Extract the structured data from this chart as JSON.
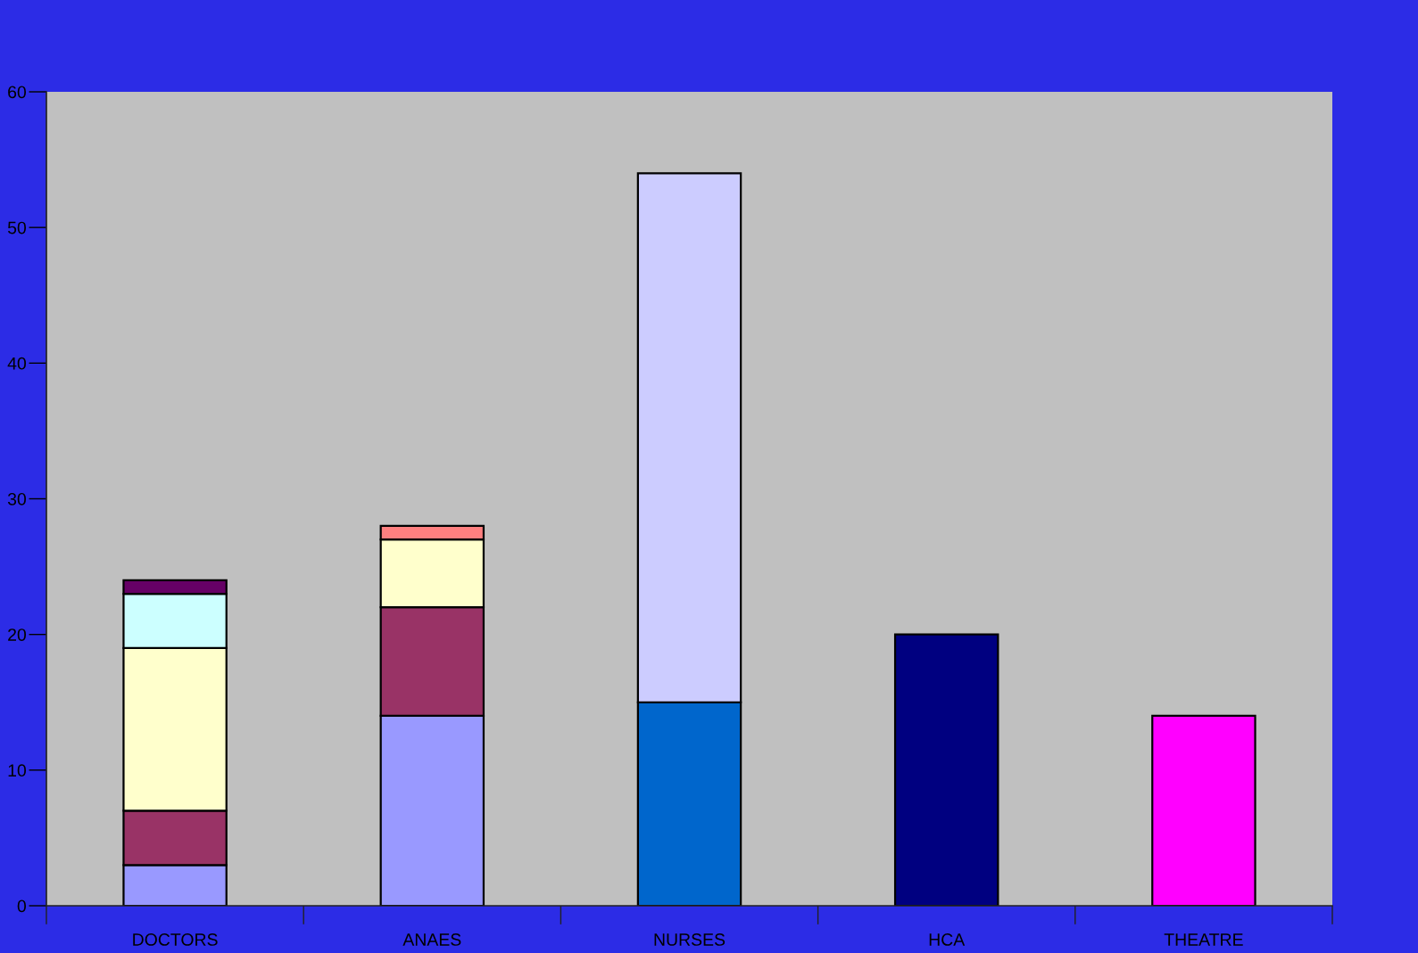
{
  "chart_data": {
    "type": "bar",
    "categories": [
      "DOCTORS",
      "ANAES",
      "NURSES",
      "HCA",
      "THEATRE"
    ],
    "stacked": true,
    "series": [
      {
        "color": "#9999ff",
        "values": [
          3,
          14,
          null,
          null,
          null
        ]
      },
      {
        "color": "#993366",
        "values": [
          4,
          8,
          null,
          null,
          null
        ]
      },
      {
        "color": "#ffffcc",
        "values": [
          12,
          5,
          null,
          null,
          null
        ]
      },
      {
        "color": "#ccffff",
        "values": [
          4,
          null,
          null,
          null,
          null
        ]
      },
      {
        "color": "#660066",
        "values": [
          1,
          null,
          null,
          null,
          null
        ]
      },
      {
        "color": "#ff8080",
        "values": [
          null,
          1,
          null,
          null,
          null
        ]
      },
      {
        "color": "#0066cc",
        "values": [
          null,
          null,
          15,
          null,
          null
        ]
      },
      {
        "color": "#ccccff",
        "values": [
          null,
          null,
          39,
          null,
          null
        ]
      },
      {
        "color": "#000080",
        "values": [
          null,
          null,
          null,
          20,
          null
        ]
      },
      {
        "color": "#ff00ff",
        "values": [
          null,
          null,
          null,
          null,
          14
        ]
      }
    ],
    "ylim": [
      0,
      60
    ],
    "yticks": [
      0,
      10,
      20,
      30,
      40,
      50,
      60
    ],
    "grid": false,
    "legend": false
  }
}
